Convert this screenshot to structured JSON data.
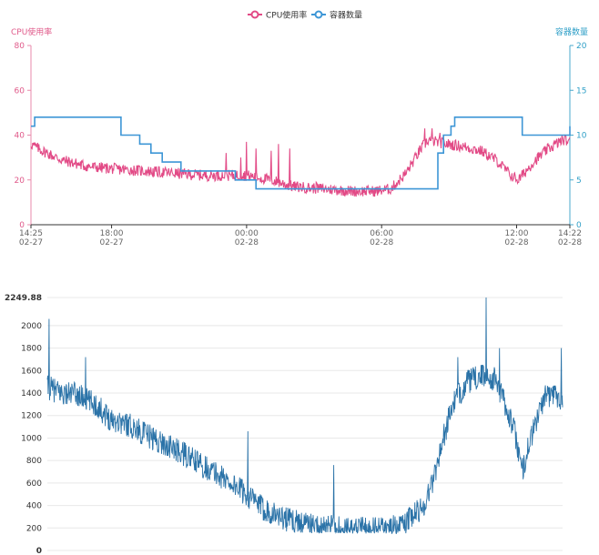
{
  "chart_data": [
    {
      "type": "line",
      "legend": {
        "placement": "top-center",
        "items": [
          {
            "label": "CPU使用率",
            "color": "#e24a86"
          },
          {
            "label": "容器数量",
            "color": "#3d96d6"
          }
        ]
      },
      "y_left": {
        "label": "CPU使用率",
        "color": "#e05a8a",
        "ylim": [
          0,
          80
        ],
        "ticks": [
          "0",
          "20",
          "40",
          "60",
          "80"
        ]
      },
      "y_right": {
        "label": "容器数量",
        "color": "#2f9fc7",
        "ylim": [
          0,
          20
        ],
        "ticks": [
          "0",
          "5",
          "10",
          "15",
          "20"
        ]
      },
      "x_ticks": [
        {
          "t": 0,
          "line1": "14:25",
          "line2": "02-27"
        },
        {
          "t": 215,
          "line1": "18:00",
          "line2": "02-27"
        },
        {
          "t": 575,
          "line1": "00:00",
          "line2": "02-28"
        },
        {
          "t": 935,
          "line1": "06:00",
          "line2": "02-28"
        },
        {
          "t": 1295,
          "line1": "12:00",
          "line2": "02-28"
        },
        {
          "t": 1437,
          "line1": "14:22",
          "line2": "02-28"
        }
      ],
      "series": [
        {
          "name": "CPU使用率",
          "axis": "left",
          "color": "#e24a86",
          "keyframes": [
            [
              0,
              36
            ],
            [
              30,
              33
            ],
            [
              80,
              29
            ],
            [
              150,
              26
            ],
            [
              220,
              25
            ],
            [
              300,
              24
            ],
            [
              380,
              23
            ],
            [
              460,
              22
            ],
            [
              520,
              22
            ],
            [
              575,
              22
            ],
            [
              640,
              20
            ],
            [
              700,
              17
            ],
            [
              780,
              16
            ],
            [
              860,
              15
            ],
            [
              920,
              15
            ],
            [
              960,
              16
            ],
            [
              1000,
              23
            ],
            [
              1040,
              34
            ],
            [
              1060,
              38
            ],
            [
              1080,
              37
            ],
            [
              1110,
              36
            ],
            [
              1150,
              35
            ],
            [
              1200,
              33
            ],
            [
              1240,
              29
            ],
            [
              1280,
              22
            ],
            [
              1300,
              20
            ],
            [
              1340,
              28
            ],
            [
              1380,
              34
            ],
            [
              1420,
              38
            ],
            [
              1437,
              37
            ]
          ],
          "noise": 2.5,
          "spikes": [
            [
              520,
              32
            ],
            [
              560,
              30
            ],
            [
              575,
              37
            ],
            [
              600,
              34
            ],
            [
              640,
              33
            ],
            [
              660,
              36
            ],
            [
              690,
              34
            ],
            [
              720,
              18
            ],
            [
              760,
              19
            ],
            [
              1050,
              43
            ],
            [
              1070,
              43
            ],
            [
              1090,
              41
            ]
          ]
        },
        {
          "name": "容器数量",
          "axis": "right",
          "step": true,
          "color": "#3d96d6",
          "points": [
            [
              0,
              11
            ],
            [
              10,
              12
            ],
            [
              230,
              12
            ],
            [
              240,
              10
            ],
            [
              280,
              10
            ],
            [
              290,
              9
            ],
            [
              310,
              9
            ],
            [
              320,
              8
            ],
            [
              340,
              8
            ],
            [
              350,
              7
            ],
            [
              390,
              7
            ],
            [
              400,
              6
            ],
            [
              535,
              6
            ],
            [
              545,
              5
            ],
            [
              580,
              5
            ],
            [
              600,
              4
            ],
            [
              1070,
              4
            ],
            [
              1085,
              8
            ],
            [
              1100,
              10
            ],
            [
              1120,
              11
            ],
            [
              1130,
              12
            ],
            [
              1300,
              12
            ],
            [
              1310,
              10
            ],
            [
              1430,
              10
            ],
            [
              1437,
              11
            ]
          ]
        }
      ]
    },
    {
      "type": "line",
      "y_ticks": [
        "0",
        "200",
        "400",
        "600",
        "800",
        "1000",
        "1200",
        "1400",
        "1600",
        "1800",
        "2000"
      ],
      "y_max_label": "2249.88",
      "ylim": [
        0,
        2249.88
      ],
      "series": [
        {
          "color": "#2b73a8",
          "keyframes": [
            [
              0,
              1450
            ],
            [
              30,
              1400
            ],
            [
              60,
              1390
            ],
            [
              100,
              1300
            ],
            [
              130,
              1180
            ],
            [
              170,
              1120
            ],
            [
              220,
              1000
            ],
            [
              280,
              870
            ],
            [
              340,
              720
            ],
            [
              400,
              560
            ],
            [
              450,
              380
            ],
            [
              500,
              280
            ],
            [
              560,
              220
            ],
            [
              620,
              200
            ],
            [
              680,
              190
            ],
            [
              740,
              210
            ],
            [
              790,
              400
            ],
            [
              810,
              650
            ],
            [
              830,
              1000
            ],
            [
              850,
              1300
            ],
            [
              880,
              1500
            ],
            [
              910,
              1550
            ],
            [
              940,
              1520
            ],
            [
              960,
              1300
            ],
            [
              980,
              1050
            ],
            [
              995,
              700
            ],
            [
              1010,
              950
            ],
            [
              1040,
              1350
            ],
            [
              1060,
              1400
            ],
            [
              1080,
              1350
            ]
          ],
          "noise": 110,
          "spikes": [
            [
              4,
              2060
            ],
            [
              80,
              1720
            ],
            [
              420,
              1060
            ],
            [
              600,
              760
            ],
            [
              920,
              2250
            ],
            [
              948,
              1800
            ],
            [
              1077,
              1800
            ],
            [
              860,
              1720
            ]
          ]
        }
      ]
    }
  ]
}
